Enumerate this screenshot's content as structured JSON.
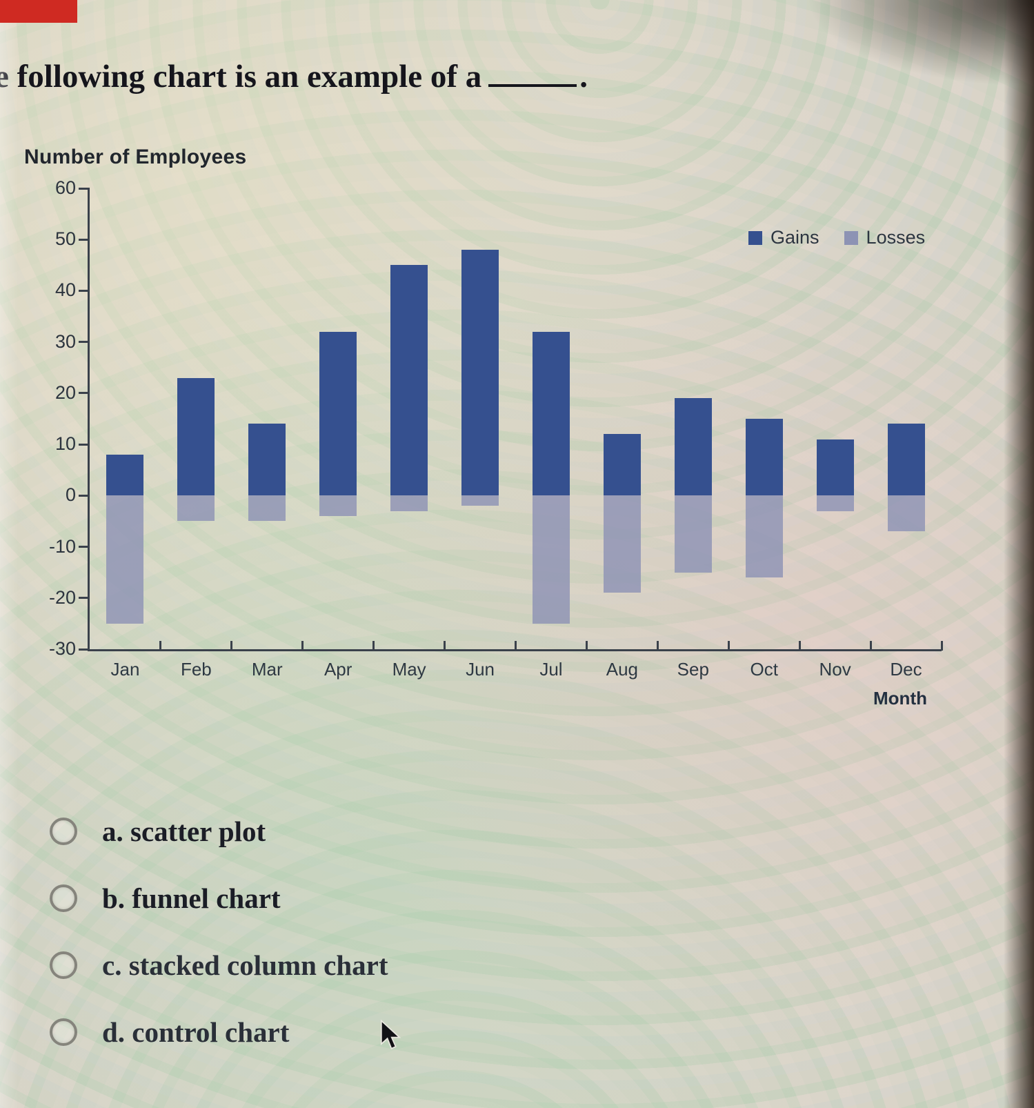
{
  "question": {
    "partial_char": "e",
    "text": "following chart is an example of a",
    "period": "."
  },
  "options": [
    {
      "key": "a",
      "label": "a. scatter plot"
    },
    {
      "key": "b",
      "label": "b. funnel chart"
    },
    {
      "key": "c",
      "label": "c. stacked column chart"
    },
    {
      "key": "d",
      "label": "d. control chart"
    }
  ],
  "chart_data": {
    "type": "bar",
    "stacked": true,
    "title": "Number of Employees",
    "xlabel": "Month",
    "ylabel": "",
    "categories": [
      "Jan",
      "Feb",
      "Mar",
      "Apr",
      "May",
      "Jun",
      "Jul",
      "Aug",
      "Sep",
      "Oct",
      "Nov",
      "Dec"
    ],
    "series": [
      {
        "name": "Gains",
        "color": "#35508f",
        "values": [
          8,
          23,
          14,
          32,
          45,
          48,
          32,
          12,
          19,
          15,
          11,
          14
        ]
      },
      {
        "name": "Losses",
        "color": "#8d93b4",
        "values": [
          -25,
          -5,
          -5,
          -4,
          -3,
          -2,
          -25,
          -19,
          -15,
          -16,
          -3,
          -7
        ]
      }
    ],
    "ylim": [
      -30,
      60
    ],
    "yticks": [
      60,
      50,
      40,
      30,
      20,
      10,
      0,
      -10,
      -20,
      -30
    ],
    "legend_position": "top-right",
    "grid": false
  },
  "colors": {
    "gains": "#35508f",
    "losses": "#8d93b4",
    "axis": "#3a414b",
    "red_marker": "#cf2a22"
  }
}
